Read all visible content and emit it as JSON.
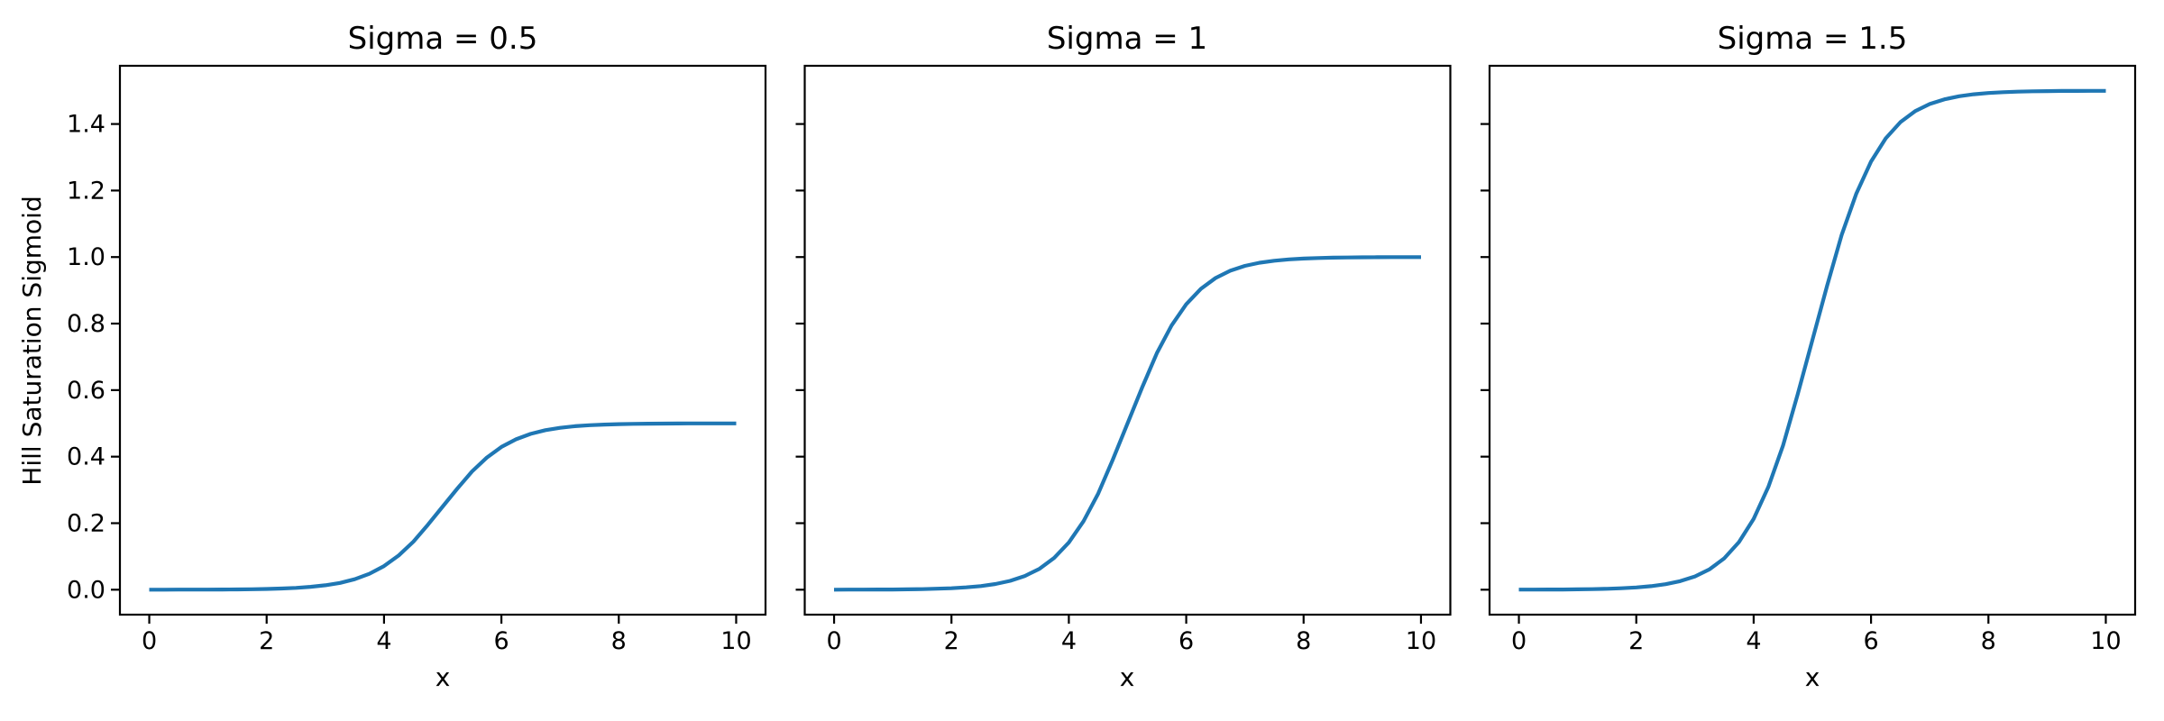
{
  "figure": {
    "background": "#ffffff",
    "axis_color": "#000000",
    "line_color": "#1f77b4"
  },
  "chart_data": [
    {
      "type": "line",
      "title": "Sigma = 0.5",
      "xlabel": "x",
      "ylabel": "Hill Saturation Sigmoid",
      "xlim": [
        -0.5,
        10.5
      ],
      "ylim": [
        -0.075,
        1.575
      ],
      "xticks": [
        0,
        2,
        4,
        6,
        8,
        10
      ],
      "yticks": [
        0.0,
        0.2,
        0.4,
        0.6,
        0.8,
        1.0,
        1.2,
        1.4
      ],
      "ytick_labels": [
        "0.0",
        "0.2",
        "0.4",
        "0.6",
        "0.8",
        "1.0",
        "1.2",
        "1.4"
      ],
      "show_ytick_labels": true,
      "grid": false,
      "legend": null,
      "series": [
        {
          "name": "sigma=0.5",
          "color": "#1f77b4",
          "x": [
            0,
            0.25,
            0.5,
            0.75,
            1,
            1.25,
            1.5,
            1.75,
            2,
            2.25,
            2.5,
            2.75,
            3,
            3.25,
            3.5,
            3.75,
            4,
            4.25,
            4.5,
            4.75,
            5,
            5.25,
            5.5,
            5.75,
            6,
            6.25,
            6.5,
            6.75,
            7,
            7.25,
            7.5,
            7.75,
            8,
            8.25,
            8.5,
            8.75,
            9,
            9.25,
            9.5,
            9.75,
            10
          ],
          "y": [
            0.0001,
            0.0001,
            0.0002,
            0.0002,
            0.0004,
            0.0006,
            0.0009,
            0.0014,
            0.0022,
            0.0035,
            0.0055,
            0.0086,
            0.0133,
            0.0205,
            0.0315,
            0.0477,
            0.0709,
            0.1029,
            0.1445,
            0.1956,
            0.25,
            0.3044,
            0.3555,
            0.3971,
            0.4291,
            0.4523,
            0.4685,
            0.4795,
            0.4867,
            0.4914,
            0.4945,
            0.4965,
            0.4978,
            0.4986,
            0.4991,
            0.4994,
            0.4996,
            0.4998,
            0.4998,
            0.4999,
            0.4999
          ]
        }
      ]
    },
    {
      "type": "line",
      "title": "Sigma = 1",
      "xlabel": "x",
      "ylabel": null,
      "xlim": [
        -0.5,
        10.5
      ],
      "ylim": [
        -0.075,
        1.575
      ],
      "xticks": [
        0,
        2,
        4,
        6,
        8,
        10
      ],
      "yticks": [
        0.0,
        0.2,
        0.4,
        0.6,
        0.8,
        1.0,
        1.2,
        1.4
      ],
      "ytick_labels": [],
      "show_ytick_labels": false,
      "grid": false,
      "legend": null,
      "series": [
        {
          "name": "sigma=1",
          "color": "#1f77b4",
          "x": [
            0,
            0.25,
            0.5,
            0.75,
            1,
            1.25,
            1.5,
            1.75,
            2,
            2.25,
            2.5,
            2.75,
            3,
            3.25,
            3.5,
            3.75,
            4,
            4.25,
            4.5,
            4.75,
            5,
            5.25,
            5.5,
            5.75,
            6,
            6.25,
            6.5,
            6.75,
            7,
            7.25,
            7.5,
            7.75,
            8,
            8.25,
            8.5,
            8.75,
            9,
            9.25,
            9.5,
            9.75,
            10
          ],
          "y": [
            0.0001,
            0.0002,
            0.0003,
            0.0005,
            0.0007,
            0.0012,
            0.0018,
            0.0029,
            0.0045,
            0.007,
            0.011,
            0.0171,
            0.0266,
            0.0411,
            0.063,
            0.0953,
            0.1419,
            0.2059,
            0.2891,
            0.3913,
            0.5,
            0.6087,
            0.7109,
            0.7941,
            0.8581,
            0.9047,
            0.937,
            0.9589,
            0.9734,
            0.9829,
            0.989,
            0.993,
            0.9955,
            0.9971,
            0.9982,
            0.9988,
            0.9993,
            0.9995,
            0.9997,
            0.9998,
            0.9999
          ]
        }
      ]
    },
    {
      "type": "line",
      "title": "Sigma = 1.5",
      "xlabel": "x",
      "ylabel": null,
      "xlim": [
        -0.5,
        10.5
      ],
      "ylim": [
        -0.075,
        1.575
      ],
      "xticks": [
        0,
        2,
        4,
        6,
        8,
        10
      ],
      "yticks": [
        0.0,
        0.2,
        0.4,
        0.6,
        0.8,
        1.0,
        1.2,
        1.4
      ],
      "ytick_labels": [],
      "show_ytick_labels": false,
      "grid": false,
      "legend": null,
      "series": [
        {
          "name": "sigma=1.5",
          "color": "#1f77b4",
          "x": [
            0,
            0.25,
            0.5,
            0.75,
            1,
            1.25,
            1.5,
            1.75,
            2,
            2.25,
            2.5,
            2.75,
            3,
            3.25,
            3.5,
            3.75,
            4,
            4.25,
            4.5,
            4.75,
            5,
            5.25,
            5.5,
            5.75,
            6,
            6.25,
            6.5,
            6.75,
            7,
            7.25,
            7.5,
            7.75,
            8,
            8.25,
            8.5,
            8.75,
            9,
            9.25,
            9.5,
            9.75,
            10
          ],
          "y": [
            0.0002,
            0.0003,
            0.0005,
            0.0007,
            0.0011,
            0.0018,
            0.0027,
            0.0043,
            0.0067,
            0.0105,
            0.0165,
            0.0257,
            0.0399,
            0.0616,
            0.0945,
            0.143,
            0.2128,
            0.3088,
            0.4336,
            0.5869,
            0.75,
            0.9131,
            1.0664,
            1.1912,
            1.2872,
            1.357,
            1.4055,
            1.4384,
            1.4601,
            1.4743,
            1.4835,
            1.4895,
            1.4933,
            1.4957,
            1.4973,
            1.4982,
            1.4989,
            1.4993,
            1.4995,
            1.4997,
            1.4998
          ]
        }
      ]
    }
  ]
}
